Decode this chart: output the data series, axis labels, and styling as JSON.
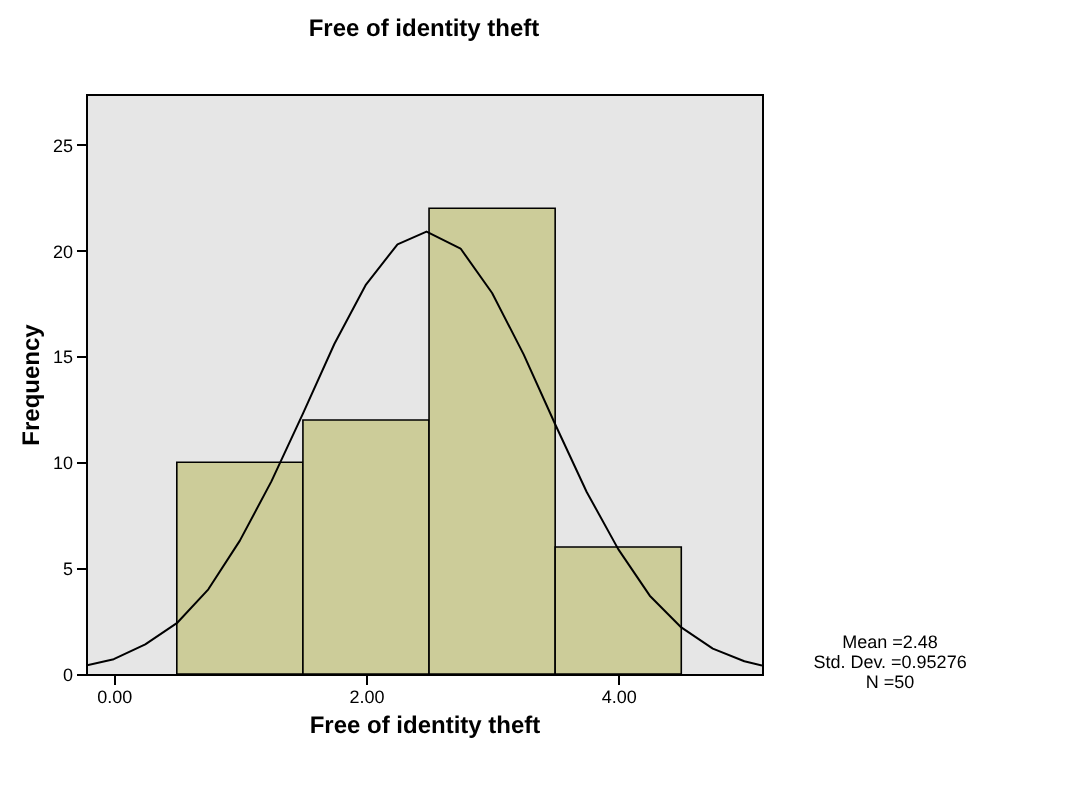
{
  "chart_data": {
    "type": "histogram",
    "title": "Free of identity theft",
    "xlabel": "Free of identity theft",
    "ylabel": "Frequency",
    "xlim": [
      -0.22,
      5.14
    ],
    "xticks": [
      {
        "value": 0,
        "label": "0.00"
      },
      {
        "value": 2,
        "label": "2.00"
      },
      {
        "value": 4,
        "label": "4.00"
      }
    ],
    "ylim": [
      0,
      27.4
    ],
    "yticks": [
      0,
      5,
      10,
      15,
      20,
      25
    ],
    "series": [
      {
        "color": "#cccc99",
        "bins": [
          0.5,
          1.5,
          2.5,
          3.5,
          4.5
        ],
        "values": [
          10,
          12,
          22,
          6
        ]
      },
      {
        "type": "line",
        "color": "#000000",
        "x": [
          -0.22,
          0,
          0.25,
          0.5,
          0.75,
          1,
          1.25,
          1.5,
          1.75,
          2,
          2.25,
          2.48,
          2.75,
          3,
          3.25,
          3.5,
          3.75,
          4,
          4.25,
          4.5,
          4.75,
          5,
          5.14
        ],
        "values": [
          0.4,
          0.7,
          1.4,
          2.4,
          4.0,
          6.3,
          9.1,
          12.3,
          15.6,
          18.4,
          20.3,
          20.9,
          20.1,
          18.0,
          15.1,
          11.8,
          8.6,
          5.9,
          3.7,
          2.2,
          1.2,
          0.6,
          0.4
        ]
      }
    ],
    "annotations": [
      "Mean =2.48",
      "Std. Dev. =0.95276",
      "N =50"
    ],
    "grid": false
  }
}
